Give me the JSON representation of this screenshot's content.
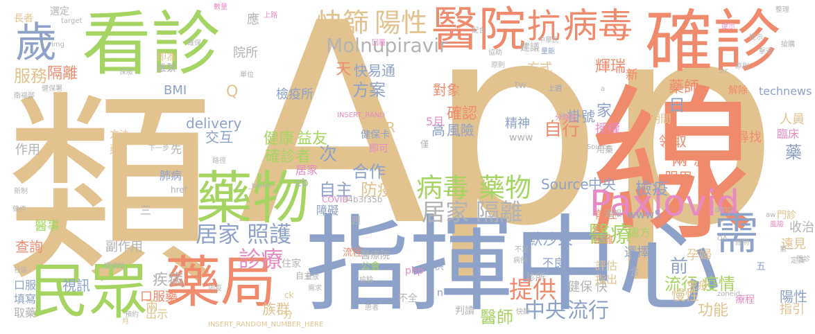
{
  "palette": {
    "tan": "#e2c28f",
    "orange": "#f08a6c",
    "green": "#a6d463",
    "blue": "#8ea1c9",
    "pink": "#e78ac3",
    "gray": "#b3b3b3"
  },
  "words": [
    {
      "text": "App",
      "color": "tan"
    },
    {
      "text": "類",
      "color": "tan"
    },
    {
      "text": "指揮中心",
      "color": "blue"
    },
    {
      "text": "線",
      "color": "orange"
    },
    {
      "text": "看診",
      "color": "green"
    },
    {
      "text": "確診",
      "color": "orange"
    },
    {
      "text": "藥物",
      "color": "green"
    },
    {
      "text": "醫院",
      "color": "orange"
    },
    {
      "text": "抗",
      "color": "orange"
    },
    {
      "text": "病毒",
      "color": "orange"
    },
    {
      "text": "Paxlovid",
      "color": "pink"
    },
    {
      "text": "民眾",
      "color": "green"
    },
    {
      "text": "藥局",
      "color": "orange"
    },
    {
      "text": "需",
      "color": "blue"
    },
    {
      "text": "歲",
      "color": "blue"
    },
    {
      "text": "快篩",
      "color": "tan"
    },
    {
      "text": "陽性",
      "color": "tan"
    },
    {
      "text": "Molnupiravir",
      "color": "gray"
    },
    {
      "text": "病毒",
      "color": "green"
    },
    {
      "text": "藥物",
      "color": "green"
    },
    {
      "text": "居家",
      "color": "gray"
    },
    {
      "text": "隔離",
      "color": "gray"
    },
    {
      "text": "居家",
      "color": "blue"
    },
    {
      "text": "照護",
      "color": "blue"
    },
    {
      "text": "診療",
      "color": "pink"
    },
    {
      "text": "提供",
      "color": "orange"
    },
    {
      "text": "醫療",
      "color": "green"
    },
    {
      "text": "流行",
      "color": "green"
    },
    {
      "text": "疫情",
      "color": "green"
    },
    {
      "text": "中央",
      "color": "blue"
    },
    {
      "text": "流行",
      "color": "blue"
    },
    {
      "text": "服務",
      "color": "tan"
    },
    {
      "text": "隔離",
      "color": "orange"
    },
    {
      "text": "天",
      "color": "orange"
    },
    {
      "text": "快",
      "color": "blue"
    },
    {
      "text": "易通",
      "color": "blue"
    },
    {
      "text": "方案",
      "color": "blue"
    },
    {
      "text": "確認",
      "color": "orange"
    },
    {
      "text": "自行",
      "color": "orange"
    },
    {
      "text": "輝瑞",
      "color": "orange"
    },
    {
      "text": "檢疫所",
      "color": "blue"
    },
    {
      "text": "健康",
      "color": "green"
    },
    {
      "text": "益友",
      "color": "green"
    },
    {
      "text": "確診者",
      "color": "green"
    },
    {
      "text": "次",
      "color": "blue"
    },
    {
      "text": "高",
      "color": "blue"
    },
    {
      "text": "風險",
      "color": "blue"
    },
    {
      "text": "家",
      "color": "blue"
    },
    {
      "text": "日",
      "color": "blue"
    },
    {
      "text": "兩",
      "color": "orange"
    },
    {
      "text": "款",
      "color": "orange"
    },
    {
      "text": "合作",
      "color": "blue"
    },
    {
      "text": "自主",
      "color": "blue"
    },
    {
      "text": "防疫",
      "color": "tan"
    },
    {
      "text": "Source",
      "color": "blue"
    },
    {
      "text": "中央",
      "color": "blue"
    },
    {
      "text": "檢疫",
      "color": "blue"
    },
    {
      "text": "疾病",
      "color": "gray"
    },
    {
      "text": "醫師",
      "color": "green"
    },
    {
      "text": "功能",
      "color": "tan"
    },
    {
      "text": "慢性",
      "color": "tan"
    },
    {
      "text": "陽性",
      "color": "blue"
    },
    {
      "text": "前",
      "color": "blue"
    },
    {
      "text": "默沙東",
      "color": "blue"
    },
    {
      "text": "藥師",
      "color": "orange"
    },
    {
      "text": "掛號",
      "color": "blue"
    },
    {
      "text": "授權",
      "color": "pink"
    },
    {
      "text": "精神",
      "color": "blue"
    },
    {
      "text": "領取",
      "color": "orange"
    },
    {
      "text": "尋找",
      "color": "orange"
    },
    {
      "text": "藥",
      "color": "blue"
    },
    {
      "text": "服用",
      "color": "orange"
    },
    {
      "text": "對象",
      "color": "orange"
    },
    {
      "text": "調整",
      "color": "tan"
    },
    {
      "text": "PCR",
      "color": "tan"
    },
    {
      "text": "5月",
      "color": "pink"
    },
    {
      "text": "delivery",
      "color": "blue"
    },
    {
      "text": "交互",
      "color": "blue"
    },
    {
      "text": "作用",
      "color": "gray"
    },
    {
      "text": "BMI",
      "color": "blue"
    },
    {
      "text": "Q",
      "color": "tan"
    },
    {
      "text": "醫事",
      "color": "green"
    },
    {
      "text": "查詢",
      "color": "orange"
    },
    {
      "text": "副作用",
      "color": "gray"
    },
    {
      "text": "視訊",
      "color": "blue"
    },
    {
      "text": "口服藥",
      "color": "orange"
    },
    {
      "text": "出示",
      "color": "tan"
    },
    {
      "text": "族群",
      "color": "tan"
    },
    {
      "text": "健保",
      "color": "gray"
    },
    {
      "text": "快",
      "color": "gray"
    },
    {
      "text": "選擇",
      "color": "blue"
    },
    {
      "text": "評估",
      "color": "tan"
    },
    {
      "text": "指出",
      "color": "tan"
    },
    {
      "text": "孕婦",
      "color": "tan"
    },
    {
      "text": "免疫",
      "color": "tan"
    },
    {
      "text": "處方",
      "color": "green"
    },
    {
      "text": "不良",
      "color": "blue"
    },
    {
      "text": "收治",
      "color": "gray"
    },
    {
      "text": "遠見",
      "color": "tan"
    },
    {
      "text": "門診",
      "color": "tan"
    },
    {
      "text": "指引",
      "color": "tan"
    },
    {
      "text": "療程",
      "color": "pink"
    },
    {
      "text": "方式",
      "color": "tan"
    },
    {
      "text": "建議",
      "color": "gray"
    },
    {
      "text": "期間",
      "color": "tan"
    },
    {
      "text": "人員",
      "color": "tan"
    },
    {
      "text": "臨床",
      "color": "pink"
    },
    {
      "text": "technews",
      "color": "blue"
    },
    {
      "text": "新",
      "color": "orange"
    },
    {
      "text": "院所",
      "color": "gray"
    },
    {
      "text": "應",
      "color": "gray"
    },
    {
      "text": "選定",
      "color": "gray"
    },
    {
      "text": "長者",
      "color": "tan"
    },
    {
      "text": "即為",
      "color": "tan"
    },
    {
      "text": "維繫",
      "color": "gray"
    },
    {
      "text": "健保卡",
      "color": "blue"
    },
    {
      "text": "即可",
      "color": "pink"
    },
    {
      "text": "居家",
      "color": "pink"
    },
    {
      "text": "cb",
      "color": "gray"
    },
    {
      "text": "障礙",
      "color": "blue"
    },
    {
      "text": "肺病",
      "color": "blue"
    },
    {
      "text": "三",
      "color": "gray"
    },
    {
      "text": "先",
      "color": "gray"
    },
    {
      "text": "方法",
      "color": "tan"
    },
    {
      "text": "藥",
      "color": "tan"
    },
    {
      "text": "www",
      "color": "gray"
    },
    {
      "text": "www5",
      "color": "blue"
    },
    {
      "text": "tw",
      "color": "gray"
    },
    {
      "text": "php",
      "color": "pink"
    },
    {
      "text": "住家",
      "color": "gray"
    },
    {
      "text": "公會",
      "color": "green"
    },
    {
      "text": "流程",
      "color": "orange"
    },
    {
      "text": "醫療院",
      "color": "gray"
    },
    {
      "text": "不全",
      "color": "gray"
    },
    {
      "text": "判讀",
      "color": "gray"
    },
    {
      "text": "診所",
      "color": "gray"
    },
    {
      "text": "供",
      "color": "blue"
    },
    {
      "text": "口服",
      "color": "blue"
    },
    {
      "text": "填寫",
      "color": "blue"
    },
    {
      "text": "取藥",
      "color": "gray"
    },
    {
      "text": "兩",
      "color": "tan"
    },
    {
      "text": "分",
      "color": "tan"
    },
    {
      "text": "五",
      "color": "blue"
    },
    {
      "text": "合",
      "color": "gray"
    },
    {
      "text": "前往",
      "color": "orange"
    },
    {
      "text": "送",
      "color": "orange"
    },
    {
      "text": "通報",
      "color": "gray"
    },
    {
      "text": "困難",
      "color": "orange"
    },
    {
      "text": "解除",
      "color": "orange"
    },
    {
      "text": "僅",
      "color": "gray"
    },
    {
      "text": "用藥",
      "color": "gray"
    },
    {
      "text": "a4b3f35b",
      "color": "gray"
    },
    {
      "text": "COVID",
      "color": "pink"
    },
    {
      "text": "amp",
      "color": "gray"
    },
    {
      "text": "INSERT_RAND",
      "color": "pink"
    },
    {
      "text": "INSERT_RANDOM_NUMBER_HERE",
      "color": "tan"
    },
    {
      "text": "Source",
      "color": "gray"
    },
    {
      "text": "target",
      "color": "gray"
    },
    {
      "text": "href",
      "color": "gray"
    },
    {
      "text": "_blank",
      "color": "gray"
    },
    {
      "text": "img",
      "color": "gray"
    },
    {
      "text": "src",
      "color": "gray"
    },
    {
      "text": "zoneid",
      "color": "gray"
    },
    {
      "text": "QA",
      "color": "gray"
    },
    {
      "text": "aw",
      "color": "gray"
    },
    {
      "text": "a",
      "color": "gray"
    },
    {
      "text": "ck",
      "color": "tan"
    },
    {
      "text": "n",
      "color": "blue"
    },
    {
      "text": "週",
      "color": "gray"
    },
    {
      "text": "自主",
      "color": "gray"
    },
    {
      "text": "檢驗",
      "color": "gray"
    },
    {
      "text": "第一",
      "color": "gray"
    },
    {
      "text": "定義",
      "color": "gray"
    },
    {
      "text": "月",
      "color": "tan"
    },
    {
      "text": "證明",
      "color": "gray"
    },
    {
      "text": "風險",
      "color": "pink"
    },
    {
      "text": "病例",
      "color": "gray"
    },
    {
      "text": "快篩",
      "color": "gray"
    },
    {
      "text": "量能",
      "color": "blue"
    },
    {
      "text": "中華民",
      "color": "gray"
    },
    {
      "text": "上路",
      "color": "pink"
    },
    {
      "text": "數量",
      "color": "pink"
    },
    {
      "text": "整理",
      "color": "gray"
    },
    {
      "text": "回覆",
      "color": "pink"
    },
    {
      "text": "確保",
      "color": "gray"
    },
    {
      "text": "單位",
      "color": "gray"
    },
    {
      "text": "保險",
      "color": "gray"
    },
    {
      "text": "提供給",
      "color": "gray"
    },
    {
      "text": "社區",
      "color": "gray"
    },
    {
      "text": "新制",
      "color": "gray"
    },
    {
      "text": "條件",
      "color": "gray"
    },
    {
      "text": "路徑",
      "color": "gray"
    },
    {
      "text": "下一步",
      "color": "gray"
    },
    {
      "text": "健保署",
      "color": "gray"
    },
    {
      "text": "門診",
      "color": "gray"
    },
    {
      "text": "衛福部",
      "color": "gray"
    },
    {
      "text": "分流",
      "color": "gray"
    },
    {
      "text": "預約",
      "color": "gray"
    },
    {
      "text": "分流院",
      "color": "pink"
    },
    {
      "text": "上週",
      "color": "blue"
    },
    {
      "text": "原則",
      "color": "gray"
    },
    {
      "text": "提示",
      "color": "gray"
    },
    {
      "text": "防疫",
      "color": "gray"
    },
    {
      "text": "患者",
      "color": "gray"
    },
    {
      "text": "擊退",
      "color": "gray"
    },
    {
      "text": "提示",
      "color": "pink"
    },
    {
      "text": "配合",
      "color": "gray"
    },
    {
      "text": "發放",
      "color": "gray"
    },
    {
      "text": "需求",
      "color": "gray"
    },
    {
      "text": "協助",
      "color": "gray"
    },
    {
      "text": "原則",
      "color": "gray"
    },
    {
      "text": "搶購",
      "color": "gray"
    },
    {
      "text": "不足",
      "color": "gray"
    }
  ]
}
